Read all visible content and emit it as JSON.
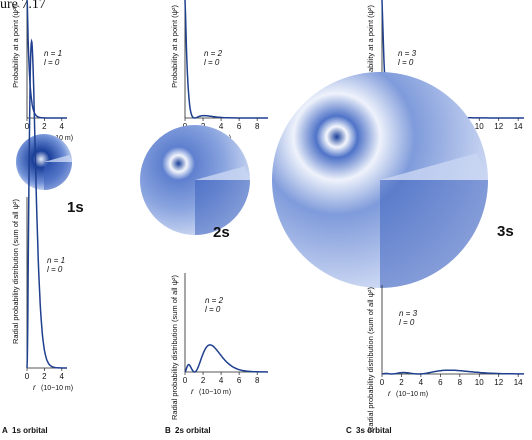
{
  "figure": {
    "title": "ure 7.17"
  },
  "colors": {
    "curve": "#1f3f8f",
    "axis": "#222222",
    "shell_dark": "#1a3f9a",
    "shell_light": "#e8eefa"
  },
  "common": {
    "xlabel": "r",
    "xunit": "(10",
    "xunit_exp": "−10",
    "xunit_end": " m)"
  },
  "panels": [
    {
      "id": "1s",
      "letter": "A",
      "caption": "1s orbital",
      "orbital": "1s",
      "n": "n = 1",
      "l": "l = 0",
      "top_ylabel": "Probability at a point (ψ²)",
      "bottom_ylabel": "Radial probability distribution (sum of all ψ²)",
      "x_ticks": [
        "0",
        "2",
        "4"
      ]
    },
    {
      "id": "2s",
      "letter": "B",
      "caption": "2s orbital",
      "orbital": "2s",
      "n": "n = 2",
      "l": "l = 0",
      "top_ylabel": "Probability at a point (ψ²)",
      "bottom_ylabel": "Radial probability distribution (sum of all ψ²)",
      "x_ticks": [
        "0",
        "2",
        "4",
        "6",
        "8"
      ]
    },
    {
      "id": "3s",
      "letter": "C",
      "caption": "3s orbital",
      "orbital": "3s",
      "n": "n = 3",
      "l": "l = 0",
      "top_ylabel": "Probability at a point (ψ²)",
      "bottom_ylabel": "Radial probability distribution (sum of all ψ²)",
      "x_ticks": [
        "0",
        "2",
        "4",
        "6",
        "8",
        "10",
        "12",
        "14"
      ]
    }
  ]
}
